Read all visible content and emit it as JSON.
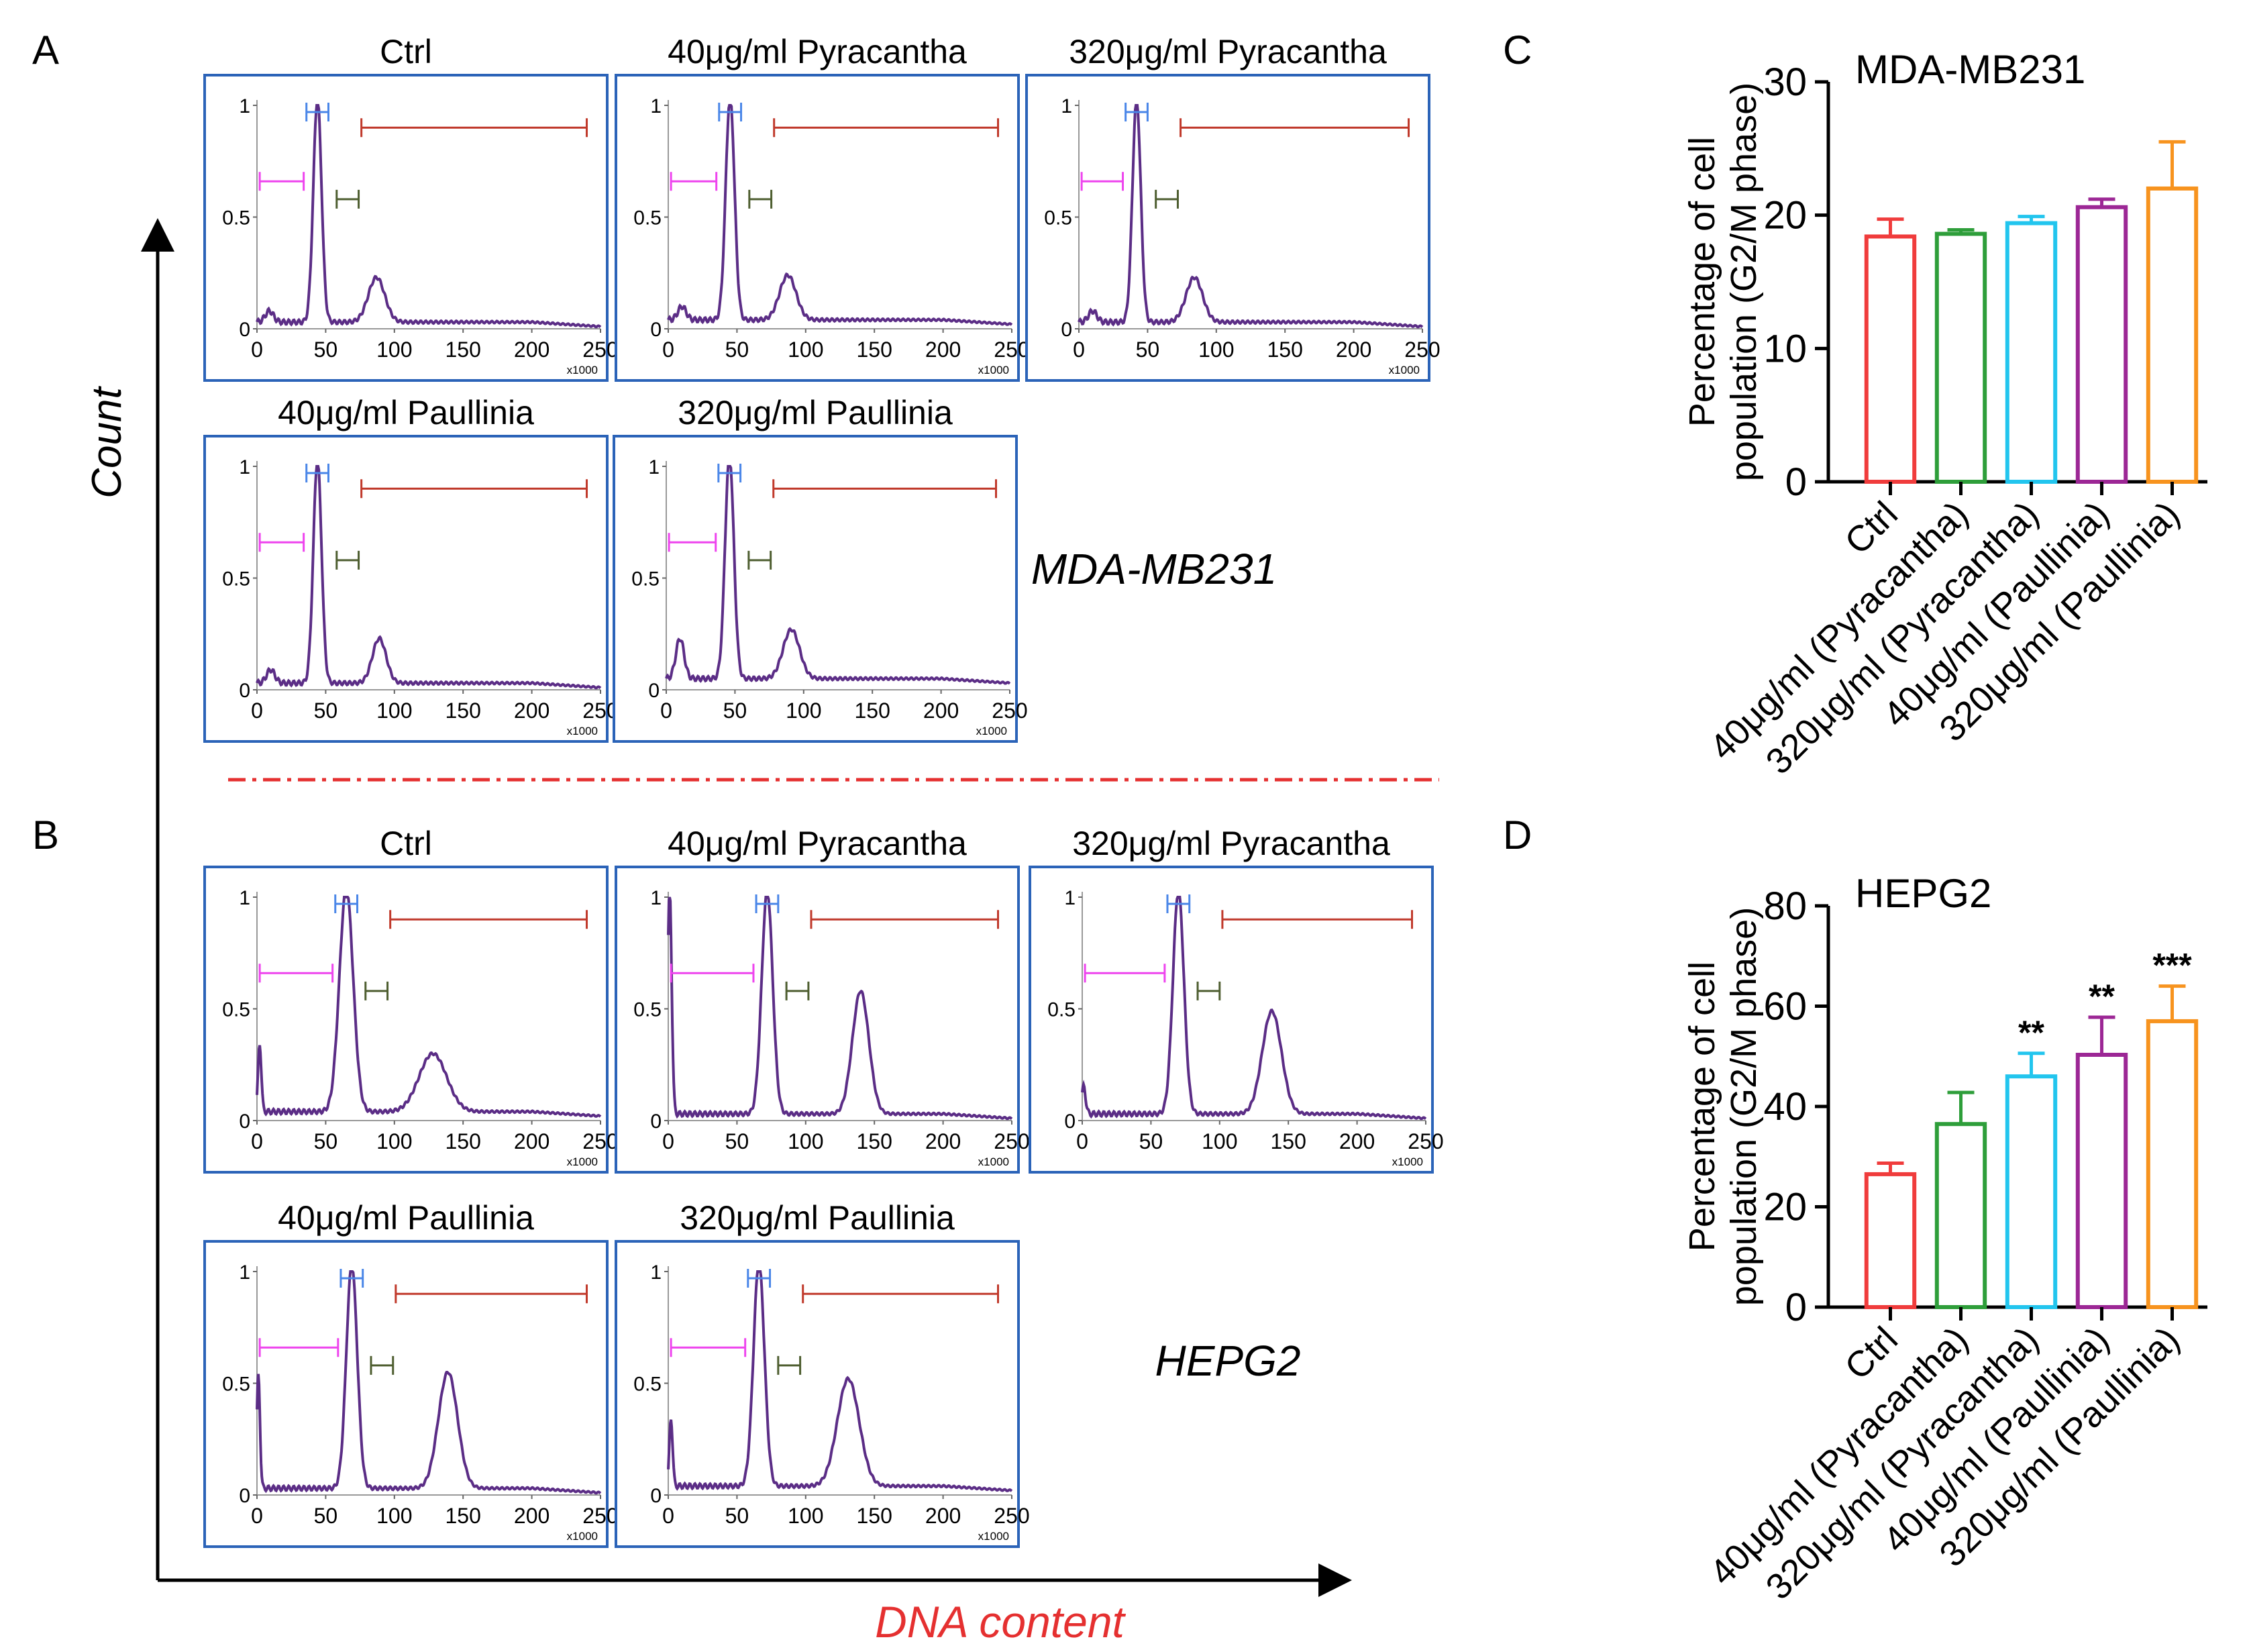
{
  "colors": {
    "frame": "#2b63b8",
    "histogram": "#5b2d86",
    "gate_subg1": "#ee44ee",
    "gate_g1": "#4a86e8",
    "gate_s": "#4e5e30",
    "gate_g2m": "#c0392b",
    "separator": "#e53030",
    "axis_label_x": "#e53030",
    "axis": "#000000"
  },
  "panel_letters": {
    "a": "A",
    "b": "B",
    "c": "C",
    "d": "D"
  },
  "axes": {
    "y_label": "Count",
    "x_label": "DNA content"
  },
  "cell_lines": {
    "mda": "MDA-MB231",
    "hepg2": "HEPG2"
  },
  "histogram_axes": {
    "x_ticks": [
      "0",
      "50",
      "100",
      "150",
      "200",
      "250"
    ],
    "y_ticks": [
      "0",
      "0.5",
      "1"
    ],
    "x_unit": "x1000"
  },
  "chart_data": [
    {
      "type": "bar",
      "panel": "C",
      "title": "MDA-MB231",
      "ylabel": "Percentage of cell population (G2/M phase)",
      "ylim": [
        0,
        30
      ],
      "yticks": [
        0,
        10,
        20,
        30
      ],
      "categories": [
        "Ctrl",
        "40μg/ml (Pyracantha)",
        "320μg/ml (Pyracantha)",
        "40μg/ml (Paullinia)",
        "320μg/ml (Paullinia)"
      ],
      "values": [
        18.4,
        18.6,
        19.4,
        20.6,
        22.0
      ],
      "errors": [
        1.3,
        0.3,
        0.5,
        0.6,
        3.5
      ],
      "significance": [
        "",
        "",
        "",
        "",
        ""
      ],
      "colors": [
        "#f03c3c",
        "#2e9e3a",
        "#22c5ee",
        "#9c2795",
        "#f7931e"
      ]
    },
    {
      "type": "bar",
      "panel": "D",
      "title": "HEPG2",
      "ylabel": "Percentage of cell population (G2/M phase)",
      "ylim": [
        0,
        80
      ],
      "yticks": [
        0,
        20,
        40,
        60,
        80
      ],
      "categories": [
        "Ctrl",
        "40μg/ml (Pyracantha)",
        "320μg/ml (Pyracantha)",
        "40μg/ml (Paullinia)",
        "320μg/ml (Paullinia)"
      ],
      "values": [
        26.5,
        36.5,
        46.0,
        50.3,
        57.0
      ],
      "errors": [
        2.2,
        6.3,
        4.6,
        7.5,
        7.0
      ],
      "significance": [
        "",
        "",
        "**",
        "**",
        "***"
      ],
      "colors": [
        "#f03c3c",
        "#2e9e3a",
        "#22c5ee",
        "#9c2795",
        "#f7931e"
      ]
    }
  ],
  "histograms": [
    {
      "title": "Ctrl",
      "line": "MDA-MB231",
      "peaks": [
        [
          44,
          1.0,
          3
        ],
        [
          87,
          0.2,
          6
        ],
        [
          9,
          0.05,
          3
        ]
      ],
      "base": 0.03
    },
    {
      "title": "40μg/ml Pyracantha",
      "line": "MDA-MB231",
      "peaks": [
        [
          45,
          1.0,
          3.2
        ],
        [
          87,
          0.2,
          6
        ],
        [
          10,
          0.06,
          3
        ]
      ],
      "base": 0.04
    },
    {
      "title": "320μg/ml Pyracantha",
      "line": "MDA-MB231",
      "peaks": [
        [
          42,
          1.0,
          3
        ],
        [
          84,
          0.2,
          6
        ],
        [
          10,
          0.05,
          3
        ]
      ],
      "base": 0.03
    },
    {
      "title": "40μg/ml Paullinia",
      "line": "MDA-MB231",
      "peaks": [
        [
          44,
          1.0,
          3
        ],
        [
          89,
          0.2,
          5
        ],
        [
          10,
          0.06,
          3
        ]
      ],
      "base": 0.03
    },
    {
      "title": "320μg/ml Paullinia",
      "line": "MDA-MB231",
      "peaks": [
        [
          46,
          1.0,
          3.2
        ],
        [
          91,
          0.22,
          6
        ],
        [
          10,
          0.18,
          3
        ]
      ],
      "base": 0.05
    },
    {
      "title": "Ctrl",
      "line": "HEPG2",
      "peaks": [
        [
          65,
          1.0,
          5
        ],
        [
          128,
          0.26,
          10
        ],
        [
          2,
          0.3,
          1.2
        ]
      ],
      "base": 0.04
    },
    {
      "title": "40μg/ml Pyracantha",
      "line": "HEPG2",
      "peaks": [
        [
          72,
          1.0,
          4
        ],
        [
          140,
          0.55,
          6
        ],
        [
          1,
          1.0,
          1.5
        ]
      ],
      "base": 0.03
    },
    {
      "title": "320μg/ml Pyracantha",
      "line": "HEPG2",
      "peaks": [
        [
          70,
          1.0,
          4
        ],
        [
          138,
          0.46,
          7
        ],
        [
          1,
          0.12,
          1.5
        ]
      ],
      "base": 0.03
    },
    {
      "title": "40μg/ml Paullinia",
      "line": "HEPG2",
      "peaks": [
        [
          69,
          1.0,
          4
        ],
        [
          139,
          0.52,
          7
        ],
        [
          1,
          0.5,
          1.2
        ]
      ],
      "base": 0.03
    },
    {
      "title": "320μg/ml Paullinia",
      "line": "HEPG2",
      "peaks": [
        [
          66,
          1.0,
          4
        ],
        [
          131,
          0.48,
          8
        ],
        [
          2,
          0.3,
          1.2
        ]
      ],
      "base": 0.04
    }
  ]
}
